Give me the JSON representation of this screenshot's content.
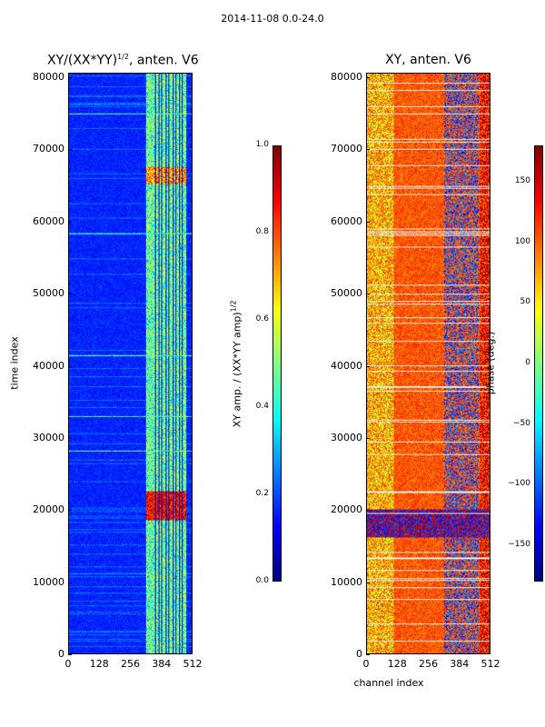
{
  "page": {
    "suptitle": "2014-11-08 0.0-24.0",
    "x_axis_label": "channel index"
  },
  "chart_data": [
    {
      "type": "heatmap",
      "title_base": "XY/(XX*YY)",
      "title_sup": "1/2",
      "title_suffix": ", anten. V6",
      "ylabel": "time index",
      "xlabel": "",
      "xlim": [
        0,
        512
      ],
      "ylim": [
        0,
        80640
      ],
      "xticks": [
        "0",
        "128",
        "256",
        "384",
        "512"
      ],
      "yticks": [
        "0",
        "10000",
        "20000",
        "30000",
        "40000",
        "50000",
        "60000",
        "70000",
        "80000"
      ],
      "colormap": "jet",
      "colorbar": {
        "label_base": "XY amp. / (XX*YY amp)",
        "label_sup": "1/2",
        "ticks": [
          "0.0",
          "0.2",
          "0.4",
          "0.6",
          "0.8",
          "1.0"
        ],
        "range": [
          0.0,
          1.0
        ]
      }
    },
    {
      "type": "heatmap",
      "title": "XY, anten. V6",
      "ylabel": "",
      "xlabel": "channel index",
      "xlim": [
        0,
        512
      ],
      "ylim": [
        0,
        80640
      ],
      "xticks": [
        "0",
        "128",
        "256",
        "384",
        "512"
      ],
      "yticks": [
        "0",
        "10000",
        "20000",
        "30000",
        "40000",
        "50000",
        "60000",
        "70000",
        "80000"
      ],
      "colormap": "jet",
      "colorbar": {
        "label": "phase (deg.)",
        "ticks": [
          "−150",
          "−100",
          "−50",
          "0",
          "50",
          "100",
          "150"
        ],
        "range": [
          -180,
          180
        ]
      }
    }
  ]
}
